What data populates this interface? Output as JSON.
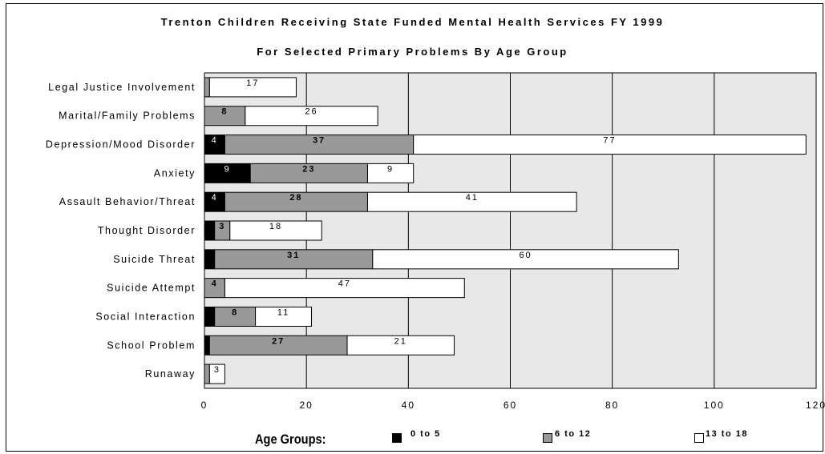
{
  "chart_data": {
    "type": "bar",
    "orientation": "horizontal",
    "stacked": true,
    "title": "Trenton Children Receiving State Funded Mental Health Services FY 1999",
    "subtitle": "For Selected Primary Problems By Age Group",
    "categories": [
      "Legal Justice Involvement",
      "Marital/Family Problems",
      "Depression/Mood Disorder",
      "Anxiety",
      "Assault Behavior/Threat",
      "Thought Disorder",
      "Suicide Threat",
      "Suicide Attempt",
      "Social Interaction",
      "School Problem",
      "Runaway"
    ],
    "series": [
      {
        "name": "0 to 5",
        "color": "#000000",
        "values": [
          0,
          0,
          4,
          9,
          4,
          2,
          2,
          0,
          2,
          1,
          0
        ],
        "labels": [
          "",
          "",
          "4",
          "9",
          "4",
          "",
          "",
          "",
          "",
          "",
          ""
        ]
      },
      {
        "name": "6 to 12",
        "color": "#999999",
        "values": [
          1,
          8,
          37,
          23,
          28,
          3,
          31,
          4,
          8,
          27,
          1
        ],
        "labels": [
          "",
          "8",
          "37",
          "23",
          "28",
          "3",
          "31",
          "4",
          "8",
          "27",
          ""
        ]
      },
      {
        "name": "13 to 18",
        "color": "#ffffff",
        "values": [
          17,
          26,
          77,
          9,
          41,
          18,
          60,
          47,
          11,
          21,
          3
        ],
        "labels": [
          "17",
          "26",
          "77",
          "9",
          "41",
          "18",
          "60",
          "47",
          "11",
          "21",
          "3"
        ]
      }
    ],
    "xlim": [
      0,
      120
    ],
    "xticks": [
      "0",
      "20",
      "40",
      "60",
      "80",
      "100",
      "120"
    ],
    "plot_background": "#e8e8e8",
    "grid": true,
    "legend": {
      "title": "Age Groups:",
      "placement": "bottom"
    }
  }
}
